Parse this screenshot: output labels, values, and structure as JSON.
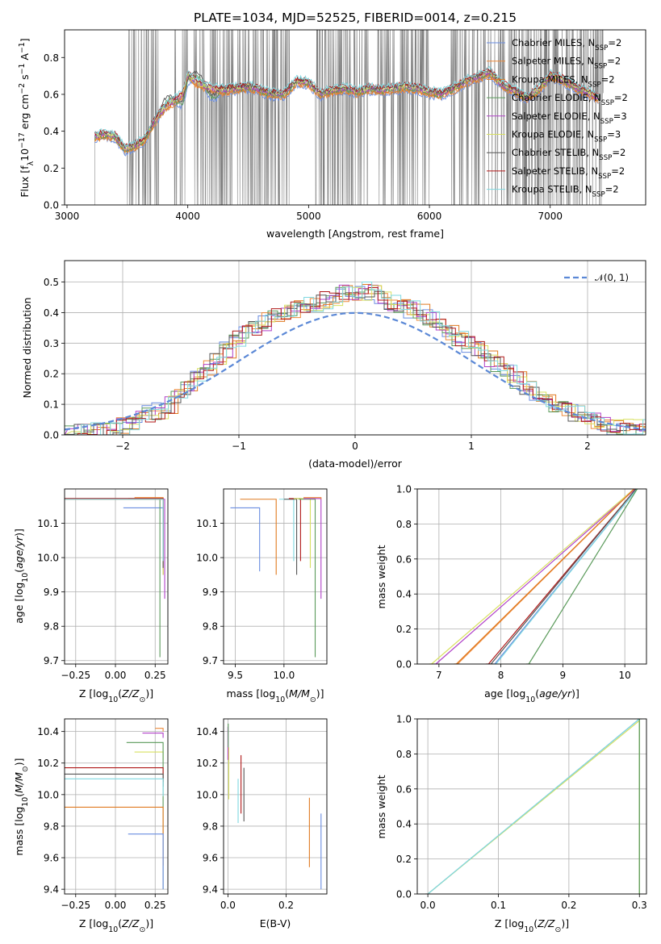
{
  "colors": {
    "Chabrier MILES": "#6a8de0",
    "Salpeter MILES": "#ee8a3a",
    "Kroupa MILES": "#e07a20",
    "Chabrier ELODIE": "#5a9a5a",
    "Salpeter ELODIE": "#b040c8",
    "Kroupa ELODIE": "#d8e060",
    "Chabrier STELIB": "#555555",
    "Salpeter STELIB": "#b01818",
    "Kroupa STELIB": "#7fd8e0",
    "data": "#808080",
    "normal": "#5b88d6"
  },
  "models": [
    "Chabrier MILES",
    "Salpeter MILES",
    "Kroupa MILES",
    "Chabrier ELODIE",
    "Salpeter ELODIE",
    "Kroupa ELODIE",
    "Chabrier STELIB",
    "Salpeter STELIB",
    "Kroupa STELIB"
  ],
  "chart_data": [
    {
      "id": "spectrum",
      "type": "line",
      "title": "PLATE=1034, MJD=52525, FIBERID=0014, z=0.215",
      "xlabel": "wavelength [Angstrom, rest frame]",
      "ylabel_main": "Flux [f",
      "ylabel_sub": "λ",
      "ylabel_rest": "10",
      "xlim": [
        2980,
        7790
      ],
      "ylim": [
        0,
        0.95
      ],
      "xticks": [
        3000,
        4000,
        5000,
        6000,
        7000
      ],
      "yticks": [
        0.0,
        0.2,
        0.4,
        0.6,
        0.8
      ],
      "legend": [
        {
          "label": "Chabrier MILES, N",
          "nssp": "2"
        },
        {
          "label": "Salpeter MILES, N",
          "nssp": "2"
        },
        {
          "label": "Kroupa MILES, N",
          "nssp": "2"
        },
        {
          "label": "Chabrier ELODIE, N",
          "nssp": "2"
        },
        {
          "label": "Salpeter ELODIE, N",
          "nssp": "3"
        },
        {
          "label": "Kroupa ELODIE, N",
          "nssp": "3"
        },
        {
          "label": "Chabrier STELIB, N",
          "nssp": "2"
        },
        {
          "label": "Salpeter STELIB, N",
          "nssp": "2"
        },
        {
          "label": "Kroupa STELIB, N",
          "nssp": "2"
        }
      ],
      "model_continuum": {
        "x": [
          3230,
          3300,
          3400,
          3480,
          3560,
          3640,
          3720,
          3800,
          3880,
          3960,
          4000,
          4100,
          4200,
          4300,
          4400,
          4500,
          4600,
          4700,
          4800,
          4900,
          5000,
          5100,
          5200,
          5300,
          5400,
          5500,
          5600,
          5700,
          5800,
          5900,
          6000,
          6100,
          6200,
          6300,
          6400,
          6500,
          6600,
          6700,
          6800,
          6900,
          7000,
          7100,
          7200,
          7300,
          7400
        ],
        "y": [
          0.37,
          0.38,
          0.37,
          0.3,
          0.32,
          0.35,
          0.45,
          0.52,
          0.56,
          0.6,
          0.7,
          0.65,
          0.63,
          0.62,
          0.63,
          0.64,
          0.62,
          0.6,
          0.6,
          0.67,
          0.66,
          0.6,
          0.62,
          0.63,
          0.61,
          0.63,
          0.62,
          0.63,
          0.64,
          0.63,
          0.61,
          0.6,
          0.63,
          0.67,
          0.69,
          0.72,
          0.65,
          0.62,
          0.58,
          0.62,
          0.7,
          0.68,
          0.64,
          0.61,
          0.58
        ]
      }
    },
    {
      "id": "residuals",
      "type": "histogram",
      "xlabel": "(data-model)/error",
      "ylabel": "Normed distribution",
      "xlim": [
        -2.5,
        2.5
      ],
      "ylim": [
        0,
        0.57
      ],
      "xticks": [
        -2,
        -1,
        0,
        1,
        2
      ],
      "yticks": [
        0.0,
        0.1,
        0.2,
        0.3,
        0.4,
        0.5
      ],
      "legend": "𝒩(0, 1)",
      "bin_width": 0.1,
      "envelope": [
        0.0,
        0.005,
        0.01,
        0.015,
        0.02,
        0.03,
        0.04,
        0.05,
        0.07,
        0.08,
        0.1,
        0.13,
        0.16,
        0.19,
        0.22,
        0.25,
        0.28,
        0.31,
        0.33,
        0.35,
        0.37,
        0.39,
        0.4,
        0.41,
        0.42,
        0.43,
        0.44,
        0.45,
        0.46,
        0.47,
        0.47,
        0.46,
        0.45,
        0.43,
        0.42,
        0.41,
        0.4,
        0.38,
        0.36,
        0.34,
        0.32,
        0.3,
        0.28,
        0.25,
        0.23,
        0.2,
        0.18,
        0.16,
        0.13,
        0.11,
        0.09,
        0.08,
        0.07,
        0.06,
        0.05,
        0.04,
        0.03,
        0.03,
        0.02,
        0.02
      ]
    },
    {
      "id": "age-vs-Z",
      "type": "step",
      "xlabel": "Z [log",
      "xlabel_sub": "10",
      "xlabel_rest": "(Z/Z",
      "ylabel": "age  [log",
      "xlim": [
        -0.32,
        0.33
      ],
      "ylim": [
        9.69,
        10.2
      ],
      "xticks": [
        -0.25,
        0.0,
        0.25
      ],
      "yticks": [
        9.7,
        9.8,
        9.9,
        10.0,
        10.1
      ],
      "lines": [
        {
          "model": "Salpeter MILES",
          "x0": 0.12,
          "y0": 10.175,
          "x1": 0.3,
          "y1": 9.95
        },
        {
          "model": "Kroupa MILES",
          "x0": 0.08,
          "y0": 10.172,
          "x1": 0.3,
          "y1": 9.95
        },
        {
          "model": "Chabrier MILES",
          "x0": 0.05,
          "y0": 10.145,
          "x1": 0.3,
          "y1": 9.95
        },
        {
          "model": "Chabrier ELODIE",
          "x0": -0.32,
          "y0": 10.17,
          "x1": 0.28,
          "y1": 9.71
        },
        {
          "model": "Salpeter ELODIE",
          "x0": -0.32,
          "y0": 10.17,
          "x1": 0.31,
          "y1": 9.88
        },
        {
          "model": "Kroupa ELODIE",
          "x0": -0.32,
          "y0": 10.17,
          "x1": 0.3,
          "y1": 9.95
        },
        {
          "model": "Chabrier STELIB",
          "x0": -0.32,
          "y0": 10.172,
          "x1": 0.3,
          "y1": 9.97
        },
        {
          "model": "Salpeter STELIB",
          "x0": -0.32,
          "y0": 10.172,
          "x1": 0.3,
          "y1": 9.99
        },
        {
          "model": "Kroupa STELIB",
          "x0": -0.32,
          "y0": 10.17,
          "x1": 0.3,
          "y1": 9.99
        }
      ]
    },
    {
      "id": "age-vs-mass",
      "type": "step",
      "xlabel": "mass [log",
      "xlim": [
        9.38,
        10.44
      ],
      "ylim": [
        9.69,
        10.2
      ],
      "xticks": [
        9.5,
        10.0
      ],
      "yticks": [
        9.7,
        9.8,
        9.9,
        10.0,
        10.1
      ],
      "lines": [
        {
          "model": "Chabrier MILES",
          "x0": 9.45,
          "y0": 10.145,
          "x1": 9.75,
          "y1": 9.96
        },
        {
          "model": "Kroupa MILES",
          "x0": 9.55,
          "y0": 10.17,
          "x1": 9.92,
          "y1": 9.95
        },
        {
          "model": "Kroupa STELIB",
          "x0": 9.95,
          "y0": 10.17,
          "x1": 10.1,
          "y1": 9.99
        },
        {
          "model": "Chabrier STELIB",
          "x0": 10.0,
          "y0": 10.17,
          "x1": 10.13,
          "y1": 9.95
        },
        {
          "model": "Salpeter STELIB",
          "x0": 10.05,
          "y0": 10.172,
          "x1": 10.17,
          "y1": 9.99
        },
        {
          "model": "Kroupa ELODIE",
          "x0": 10.1,
          "y0": 10.172,
          "x1": 10.27,
          "y1": 9.97
        },
        {
          "model": "Chabrier ELODIE",
          "x0": 10.15,
          "y0": 10.17,
          "x1": 10.32,
          "y1": 9.71
        },
        {
          "model": "Salpeter ELODIE",
          "x0": 10.2,
          "y0": 10.172,
          "x1": 10.38,
          "y1": 9.88
        },
        {
          "model": "Salpeter MILES",
          "x0": 10.2,
          "y0": 10.175,
          "x1": 10.38,
          "y1": 10.17
        }
      ]
    },
    {
      "id": "cum-mass-weight-age",
      "type": "line",
      "xlabel": "age  [log",
      "ylabel": "mass weight",
      "xlim": [
        6.65,
        10.35
      ],
      "ylim": [
        0,
        1.0
      ],
      "xticks": [
        7,
        8,
        9,
        10
      ],
      "yticks": [
        0.0,
        0.2,
        0.4,
        0.6,
        0.8,
        1.0
      ],
      "lines": [
        {
          "model": "Salpeter ELODIE",
          "x": [
            6.95,
            10.17
          ],
          "y": [
            0.0,
            1.0
          ]
        },
        {
          "model": "Kroupa ELODIE",
          "x": [
            6.88,
            10.15
          ],
          "y": [
            0.0,
            1.0
          ]
        },
        {
          "model": "Salpeter MILES",
          "x": [
            7.3,
            10.15
          ],
          "y": [
            0.0,
            1.0
          ]
        },
        {
          "model": "Kroupa MILES",
          "x": [
            7.28,
            10.15
          ],
          "y": [
            0.0,
            1.0
          ]
        },
        {
          "model": "Salpeter STELIB",
          "x": [
            7.8,
            10.18
          ],
          "y": [
            0.0,
            1.0
          ]
        },
        {
          "model": "Chabrier STELIB",
          "x": [
            7.84,
            10.18
          ],
          "y": [
            0.0,
            1.0
          ]
        },
        {
          "model": "Chabrier MILES",
          "x": [
            7.9,
            10.2
          ],
          "y": [
            0.0,
            1.0
          ]
        },
        {
          "model": "Kroupa STELIB",
          "x": [
            7.92,
            10.2
          ],
          "y": [
            0.0,
            1.0
          ]
        },
        {
          "model": "Chabrier ELODIE",
          "x": [
            8.45,
            10.2
          ],
          "y": [
            0.0,
            1.0
          ]
        }
      ]
    },
    {
      "id": "mass-vs-Z",
      "type": "step",
      "xlabel": "Z [log",
      "ylabel": "mass [log",
      "xlim": [
        -0.32,
        0.33
      ],
      "ylim": [
        9.37,
        10.48
      ],
      "xticks": [
        -0.25,
        0.0,
        0.25
      ],
      "yticks": [
        9.4,
        9.6,
        9.8,
        10.0,
        10.2,
        10.4
      ],
      "lines": [
        {
          "model": "Salpeter ELODIE",
          "x0": 0.17,
          "y0": 10.39,
          "x1": 0.3,
          "y1": 10.36
        },
        {
          "model": "Kroupa ELODIE",
          "x0": 0.12,
          "y0": 10.27,
          "x1": 0.3,
          "y1": 10.22
        },
        {
          "model": "Chabrier ELODIE",
          "x0": 0.07,
          "y0": 10.33,
          "x1": 0.3,
          "y1": 9.4
        },
        {
          "model": "Salpeter STELIB",
          "x0": -0.32,
          "y0": 10.17,
          "x1": 0.3,
          "y1": 10.08
        },
        {
          "model": "Chabrier STELIB",
          "x0": -0.32,
          "y0": 10.13,
          "x1": 0.3,
          "y1": 10.05
        },
        {
          "model": "Kroupa STELIB",
          "x0": -0.32,
          "y0": 10.1,
          "x1": 0.3,
          "y1": 9.99
        },
        {
          "model": "Kroupa MILES",
          "x0": -0.32,
          "y0": 9.92,
          "x1": 0.3,
          "y1": 9.55
        },
        {
          "model": "Chabrier MILES",
          "x0": 0.08,
          "y0": 9.75,
          "x1": 0.3,
          "y1": 9.4
        },
        {
          "model": "Salpeter MILES",
          "x0": 0.25,
          "y0": 10.42,
          "x1": 0.3,
          "y1": 10.4
        }
      ]
    },
    {
      "id": "mass-vs-ebv",
      "type": "segments",
      "xlabel": "E(B-V)",
      "xlim": [
        -0.015,
        0.34
      ],
      "ylim": [
        9.37,
        10.48
      ],
      "xticks": [
        0.0,
        0.2
      ],
      "yticks": [
        9.4,
        9.6,
        9.8,
        10.0,
        10.2,
        10.4
      ],
      "lines": [
        {
          "model": "Salpeter ELODIE",
          "x": 0.0,
          "y": [
            10.22,
            10.43
          ]
        },
        {
          "model": "Kroupa ELODIE",
          "x": 0.003,
          "y": [
            9.97,
            10.3
          ]
        },
        {
          "model": "Chabrier ELODIE",
          "x": 0.001,
          "y": [
            10.3,
            10.45
          ]
        },
        {
          "model": "Kroupa STELIB",
          "x": 0.035,
          "y": [
            9.82,
            10.1
          ]
        },
        {
          "model": "Salpeter STELIB",
          "x": 0.045,
          "y": [
            9.88,
            10.25
          ]
        },
        {
          "model": "Chabrier STELIB",
          "x": 0.055,
          "y": [
            9.83,
            10.17
          ]
        },
        {
          "model": "Kroupa MILES",
          "x": 0.28,
          "y": [
            9.54,
            9.98
          ]
        },
        {
          "model": "Chabrier MILES",
          "x": 0.32,
          "y": [
            9.4,
            9.88
          ]
        }
      ]
    },
    {
      "id": "cum-mass-weight-Z",
      "type": "line",
      "xlabel": "Z [log",
      "ylabel": "mass weight",
      "xlim": [
        -0.015,
        0.31
      ],
      "ylim": [
        0,
        1.0
      ],
      "xticks": [
        0.0,
        0.1,
        0.2,
        0.3
      ],
      "yticks": [
        0.0,
        0.2,
        0.4,
        0.6,
        0.8,
        1.0
      ],
      "lines": [
        {
          "model": "Chabrier MILES",
          "x": [
            0.0,
            0.3,
            0.3
          ],
          "y": [
            0.0,
            1.0,
            0.0
          ]
        },
        {
          "model": "Kroupa ELODIE",
          "x": [
            0.0,
            0.3,
            0.3
          ],
          "y": [
            0.0,
            0.99,
            0.0
          ]
        },
        {
          "model": "Kroupa STELIB",
          "x": [
            0.0,
            0.3
          ],
          "y": [
            0.0,
            1.0
          ]
        },
        {
          "model": "Chabrier ELODIE",
          "x": [
            0.3,
            0.3
          ],
          "y": [
            0.0,
            1.0
          ]
        }
      ]
    }
  ]
}
